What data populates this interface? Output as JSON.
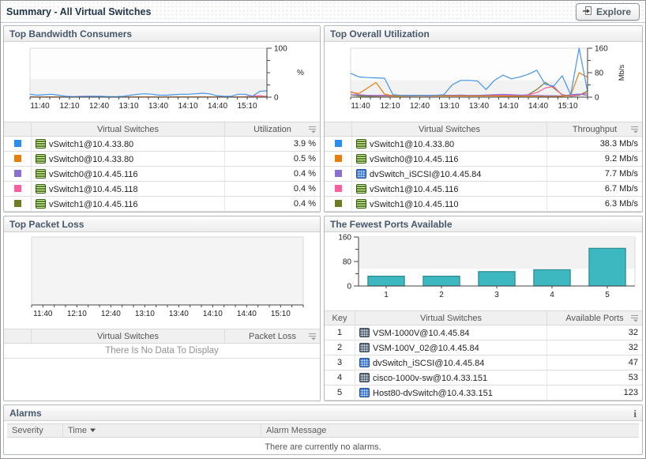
{
  "header": {
    "title": "Summary - All Virtual Switches",
    "explore_label": "Explore"
  },
  "panels": {
    "bandwidth": {
      "title": "Top Bandwidth Consumers",
      "cols": {
        "name": "Virtual Switches",
        "value": "Utilization"
      },
      "rows": [
        {
          "color": "#2b8dee",
          "icon": "vswitch",
          "name": "vSwitch1@10.4.33.80",
          "value": "3.9 %"
        },
        {
          "color": "#e5800f",
          "icon": "vswitch",
          "name": "vSwitch0@10.4.33.80",
          "value": "0.5 %"
        },
        {
          "color": "#8a6fd0",
          "icon": "vswitch",
          "name": "vSwitch0@10.4.45.116",
          "value": "0.4 %"
        },
        {
          "color": "#f8609f",
          "icon": "vswitch",
          "name": "vSwitch1@10.4.45.118",
          "value": "0.4 %"
        },
        {
          "color": "#6f7d22",
          "icon": "vswitch",
          "name": "vSwitch1@10.4.45.116",
          "value": "0.4 %"
        }
      ]
    },
    "utilization": {
      "title": "Top Overall Utilization",
      "cols": {
        "name": "Virtual Switches",
        "value": "Throughput"
      },
      "rows": [
        {
          "color": "#2b8dee",
          "icon": "vswitch",
          "name": "vSwitch1@10.4.33.80",
          "value": "38.3 Mb/s"
        },
        {
          "color": "#e5800f",
          "icon": "vswitch",
          "name": "vSwitch0@10.4.45.116",
          "value": "9.2 Mb/s"
        },
        {
          "color": "#8a6fd0",
          "icon": "dvswitch",
          "name": "dvSwitch_iSCSI@10.4.45.84",
          "value": "7.7 Mb/s"
        },
        {
          "color": "#f8609f",
          "icon": "vswitch",
          "name": "vSwitch1@10.4.45.116",
          "value": "6.7 Mb/s"
        },
        {
          "color": "#6f7d22",
          "icon": "vswitch",
          "name": "vSwitch1@10.4.45.110",
          "value": "6.3 Mb/s"
        }
      ]
    },
    "packetloss": {
      "title": "Top Packet Loss",
      "cols": {
        "name": "Virtual Switches",
        "value": "Packet Loss"
      },
      "empty_text": "There Is No Data To Display"
    },
    "ports": {
      "title": "The Fewest Ports Available",
      "cols": {
        "key": "Key",
        "name": "Virtual Switches",
        "value": "Available Ports"
      },
      "rows": [
        {
          "key": "1",
          "icon": "vsm",
          "name": "VSM-1000V@10.4.45.84",
          "value": "32"
        },
        {
          "key": "2",
          "icon": "vsm",
          "name": "VSM-100V_02@10.4.45.84",
          "value": "32"
        },
        {
          "key": "3",
          "icon": "dvswitch",
          "name": "dvSwitch_iSCSI@10.4.45.84",
          "value": "47"
        },
        {
          "key": "4",
          "icon": "vsm",
          "name": "cisco-1000v-sw@10.4.33.151",
          "value": "53"
        },
        {
          "key": "5",
          "icon": "dvswitch",
          "name": "Host80-dvSwitch@10.4.33.151",
          "value": "123"
        }
      ]
    }
  },
  "alarms": {
    "title": "Alarms",
    "cols": {
      "severity": "Severity",
      "time": "Time",
      "message": "Alarm Message"
    },
    "empty_text": "There are currently no alarms."
  },
  "chart_data": [
    {
      "type": "line",
      "title": "Top Bandwidth Consumers",
      "ylabel": "%",
      "ylim": [
        0,
        100
      ],
      "x_labels": [
        "11:40",
        "12:10",
        "12:40",
        "13:10",
        "13:40",
        "14:10",
        "14:40",
        "15:10"
      ],
      "yticks": [
        {
          "value": 100,
          "label": "100"
        },
        {
          "value": 75,
          "label": ""
        },
        {
          "value": 50,
          "label": ""
        },
        {
          "value": 25,
          "label": ""
        },
        {
          "value": 0,
          "label": "0"
        }
      ],
      "series": [
        {
          "name": "vSwitch1@10.4.33.80",
          "color": "#4596e8",
          "values": [
            6,
            4,
            5,
            6,
            4,
            2,
            1,
            1,
            2,
            2,
            2,
            1,
            1,
            2,
            4,
            6,
            7,
            6,
            4,
            4,
            5,
            6,
            6,
            7,
            8,
            7,
            3,
            2,
            2,
            6,
            6,
            2,
            12,
            13
          ]
        },
        {
          "name": "vSwitch0@10.4.33.80",
          "color": "#e5800f",
          "values": [
            0.5,
            0.5
          ]
        },
        {
          "name": "vSwitch0@10.4.45.116",
          "color": "#8a6fd0",
          "values": [
            0.4,
            0.4
          ]
        },
        {
          "name": "vSwitch1@10.4.45.118",
          "color": "#f8609f",
          "values": [
            1,
            0.5,
            0.5,
            0.5,
            0.5,
            0.5,
            0.8,
            2,
            2,
            2,
            0.8,
            0.5,
            0.5,
            0.5,
            0.5,
            0.5,
            0.5,
            0.5,
            0.5,
            0.5,
            0.5,
            0.5,
            0.5,
            0.5,
            0.5,
            0.5,
            0.5,
            0.5,
            0.5,
            0.5,
            1,
            2.5,
            3,
            1.5
          ]
        },
        {
          "name": "vSwitch1@10.4.45.116",
          "color": "#6f7d22",
          "values": [
            0.4,
            0.4
          ]
        }
      ]
    },
    {
      "type": "line",
      "title": "Top Overall Utilization",
      "ylabel": "Mb/s",
      "ylim": [
        0,
        160
      ],
      "x_labels": [
        "11:40",
        "12:10",
        "12:40",
        "13:10",
        "13:40",
        "14:10",
        "14:40",
        "15:10"
      ],
      "yticks": [
        {
          "value": 160,
          "label": "160"
        },
        {
          "value": 120,
          "label": ""
        },
        {
          "value": 80,
          "label": "80"
        },
        {
          "value": 40,
          "label": ""
        },
        {
          "value": 0,
          "label": "0"
        }
      ],
      "series": [
        {
          "name": "vSwitch1@10.4.33.80",
          "color": "#4596e8",
          "values": [
            78,
            66,
            64,
            63,
            62,
            8,
            6,
            5,
            6,
            5,
            6,
            8,
            40,
            55,
            55,
            53,
            25,
            55,
            72,
            60,
            66,
            75,
            88,
            42,
            36,
            70,
            8,
            160,
            18
          ]
        },
        {
          "name": "vSwitch0@10.4.45.116",
          "color": "#e5800f",
          "values": [
            16,
            12,
            30,
            48,
            10,
            4,
            4,
            4,
            4,
            4,
            4,
            4,
            4,
            4,
            4,
            4,
            4,
            4,
            3,
            3,
            3,
            3,
            3,
            2,
            2,
            3,
            5,
            80,
            65
          ]
        },
        {
          "name": "dvSwitch_iSCSI@10.4.45.84",
          "color": "#8a6fd0",
          "values": [
            8,
            7,
            6,
            6,
            6,
            6,
            6,
            6,
            6,
            6,
            6,
            6,
            6,
            7,
            6,
            6,
            7,
            8,
            9,
            8,
            7,
            6,
            6,
            5,
            5,
            4,
            8,
            10,
            6
          ]
        },
        {
          "name": "vSwitch1@10.4.45.116",
          "color": "#f8609f",
          "values": [
            18,
            8,
            6,
            5,
            5,
            5,
            5,
            5,
            5,
            5,
            5,
            5,
            5,
            5,
            5,
            6,
            6,
            6,
            6,
            6,
            6,
            8,
            15,
            30,
            35,
            6,
            4,
            8,
            12
          ]
        },
        {
          "name": "vSwitch1@10.4.45.110",
          "color": "#6f7d22",
          "values": [
            8,
            4,
            3,
            3,
            4,
            4,
            4,
            4,
            5,
            5,
            5,
            6,
            6,
            6,
            5,
            5,
            5,
            5,
            5,
            5,
            5,
            8,
            25,
            48,
            30,
            8,
            3,
            6,
            20
          ]
        }
      ]
    },
    {
      "type": "line",
      "title": "Top Packet Loss",
      "ylabel": "",
      "ylim": [
        0,
        1
      ],
      "x_labels": [
        "11:40",
        "12:10",
        "12:40",
        "13:10",
        "13:40",
        "14:10",
        "14:40",
        "15:10"
      ],
      "yticks": [],
      "series": []
    },
    {
      "type": "bar",
      "title": "The Fewest Ports Available",
      "ylabel": "",
      "ylim": [
        0,
        160
      ],
      "categories": [
        "1",
        "2",
        "3",
        "4",
        "5"
      ],
      "values": [
        32,
        32,
        47,
        53,
        123
      ],
      "bar_color": "#3db7c0",
      "bar_border": "#2a8b94",
      "yticks": [
        {
          "value": 160,
          "label": "160"
        },
        {
          "value": 120,
          "label": ""
        },
        {
          "value": 80,
          "label": "80"
        },
        {
          "value": 40,
          "label": ""
        },
        {
          "value": 0,
          "label": "0"
        }
      ]
    }
  ]
}
